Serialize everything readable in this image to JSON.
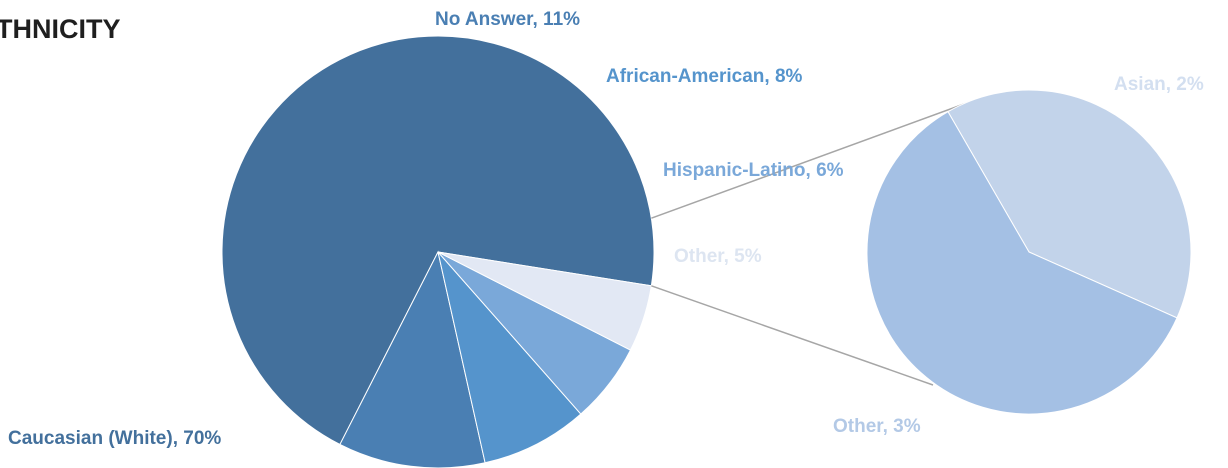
{
  "chart_data": {
    "type": "pie",
    "title": "THNICITY",
    "main_pie": {
      "slices": [
        {
          "label": "Caucasian (White), 70%",
          "value": 70,
          "color": "#43709c"
        },
        {
          "label": "No Answer, 11%",
          "value": 11,
          "color": "#4a7fb3"
        },
        {
          "label": "African-American, 8%",
          "value": 8,
          "color": "#5594cc"
        },
        {
          "label": "Hispanic-Latino, 6%",
          "value": 6,
          "color": "#7aa8d9"
        },
        {
          "label": "Other, 5%",
          "value": 5,
          "color": "#e2e8f4"
        }
      ]
    },
    "secondary_pie": {
      "breakdown_of": "Other, 5%",
      "slices": [
        {
          "label": "Asian, 2%",
          "value": 2,
          "color": "#c2d3ea"
        },
        {
          "label": "Other, 3%",
          "value": 3,
          "color": "#a4c0e4"
        }
      ]
    },
    "label_colors": {
      "Caucasian (White), 70%": "#43709c",
      "No Answer, 11%": "#4a7fb3",
      "African-American, 8%": "#5594cc",
      "Hispanic-Latino, 6%": "#7aa8d9",
      "Other, 5%": "#dde5f1",
      "Asian, 2%": "#d3dff0",
      "Other, 3%": "#b3c9e6"
    },
    "connector_color": "#a6a6a6"
  }
}
